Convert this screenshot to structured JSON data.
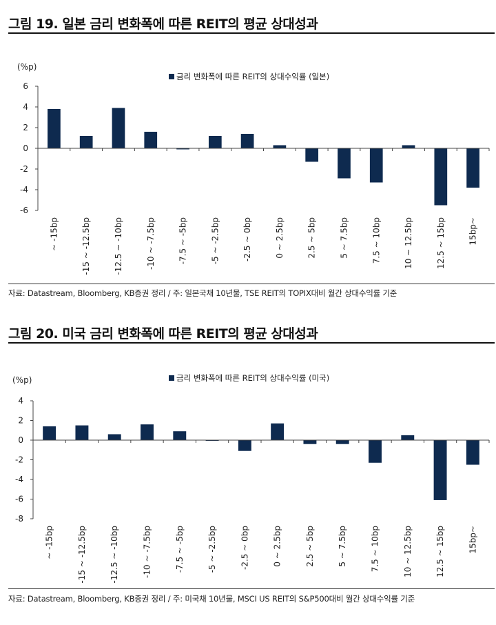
{
  "figures": [
    {
      "title": "그림 19. 일본 금리 변화폭에 따른 REIT의 평균 상대성과",
      "source": "자료: Datastream, Bloomberg, KB증권 정리 / 주: 일본국채 10년물, TSE REIT의 TOPIX대비 월간 상대수익률 기준",
      "chart_data": {
        "type": "bar",
        "unit_label": "(%p)",
        "categories": [
          "~ -15bp",
          "-15 ~ -12.5bp",
          "-12.5 ~ -10bp",
          "-10 ~ -7.5bp",
          "-7.5 ~ -5bp",
          "-5 ~ -2.5bp",
          "-2.5 ~ 0bp",
          "0 ~ 2.5bp",
          "2.5 ~ 5bp",
          "5 ~ 7.5bp",
          "7.5 ~ 10bp",
          "10 ~ 12.5bp",
          "12.5 ~ 15bp",
          "15bp~"
        ],
        "series": [
          {
            "name": "금리 변화폭에 따른 REIT의 상대수익률 (일본)",
            "values": [
              3.8,
              1.2,
              3.9,
              1.6,
              -0.1,
              1.2,
              1.4,
              0.3,
              -1.3,
              -2.9,
              -3.3,
              0.3,
              -5.5,
              -3.8
            ]
          }
        ],
        "ylim": [
          -6,
          6
        ],
        "yticks": [
          -6,
          -4,
          -2,
          0,
          2,
          4,
          6
        ],
        "ytick_labels": [
          "-6",
          "-4",
          "-2",
          "0",
          "2",
          "4",
          "6"
        ],
        "legend_position": "top-center",
        "grid": false,
        "bar_color": "#0e2a4f"
      }
    },
    {
      "title": "그림 20. 미국 금리 변화폭에 따른 REIT의 평균 상대성과",
      "source": "자료: Datastream, Bloomberg, KB증권 정리 / 주: 미국채 10년물, MSCI US REIT의 S&P500대비 월간 상대수익률 기준",
      "chart_data": {
        "type": "bar",
        "unit_label": "(%p)",
        "categories": [
          "~ -15bp",
          "-15 ~ -12.5bp",
          "-12.5 ~ -10bp",
          "-10 ~ -7.5bp",
          "-7.5 ~ -5bp",
          "-5 ~ -2.5bp",
          "-2.5 ~ 0bp",
          "0 ~ 2.5bp",
          "2.5 ~ 5bp",
          "5 ~ 7.5bp",
          "7.5 ~ 10bp",
          "10 ~ 12.5bp",
          "12.5 ~ 15bp",
          "15bp~"
        ],
        "series": [
          {
            "name": "금리 변화폭에 따른 REIT의 상대수익률 (미국)",
            "values": [
              1.4,
              1.5,
              0.6,
              1.6,
              0.9,
              -0.05,
              -1.1,
              1.7,
              -0.4,
              -0.4,
              -2.3,
              0.5,
              -6.1,
              -2.5
            ]
          }
        ],
        "ylim": [
          -8,
          4
        ],
        "yticks": [
          -8,
          -6,
          -4,
          -2,
          0,
          2,
          4
        ],
        "ytick_labels": [
          "-8",
          "-6",
          "-4",
          "-2",
          "0",
          "2",
          "4"
        ],
        "legend_position": "top-center",
        "grid": false,
        "bar_color": "#0e2a4f"
      }
    }
  ]
}
